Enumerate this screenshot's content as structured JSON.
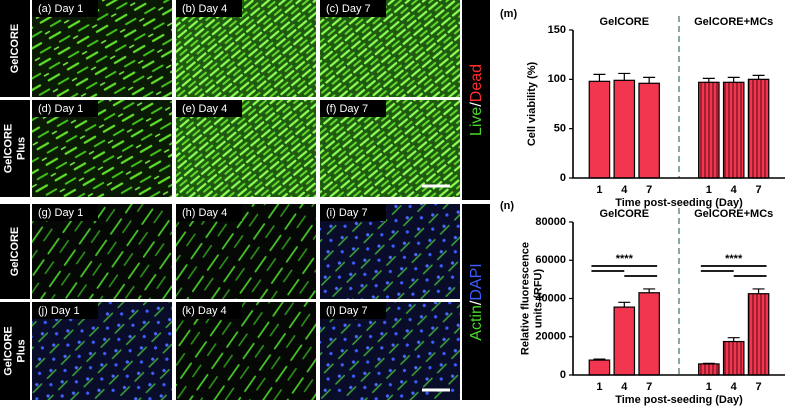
{
  "panels": {
    "row_labels": [
      [
        "GelCORE"
      ],
      [
        "GelCORE",
        "Plus"
      ],
      [
        "GelCORE"
      ],
      [
        "GelCORE",
        "Plus"
      ]
    ],
    "image_labels": [
      "(a) Day 1",
      "(b) Day 4",
      "(c) Day 7",
      "(d) Day 1",
      "(e) Day 4",
      "(f) Day 7",
      "(g) Day 1",
      "(h) Day 4",
      "(i) Day 7",
      "(j) Day 1",
      "(k) Day 4",
      "(l) Day 7"
    ],
    "stain_labels": [
      [
        "Live",
        "/",
        "Dead"
      ],
      [
        "Actin",
        "/",
        "DAPI"
      ]
    ]
  },
  "chart_data": [
    {
      "type": "bar",
      "title": "(m)",
      "y_label": [
        "Cell viability (%)"
      ],
      "x_label": "Time post-seeding (Day)",
      "categories": [
        "1",
        "4",
        "7",
        "1",
        "4",
        "7"
      ],
      "group_labels": [
        "GelCORE",
        "GelCORE+MCs"
      ],
      "values": [
        98,
        99,
        96,
        97,
        97,
        100
      ],
      "errors": [
        7,
        7,
        6,
        4,
        5,
        4
      ],
      "hatched": [
        false,
        false,
        false,
        true,
        true,
        true
      ],
      "color": "#f2364f",
      "ylim": [
        0,
        150
      ],
      "yticks": [
        0,
        50,
        100,
        150
      ]
    },
    {
      "type": "bar",
      "title": "(n)",
      "y_label": [
        "Relative fluorescence",
        "units (RFU)"
      ],
      "x_label": "Time post-seeding (Day)",
      "categories": [
        "1",
        "4",
        "7",
        "1",
        "4",
        "7"
      ],
      "group_labels": [
        "GelCORE",
        "GelCORE+MCs"
      ],
      "values": [
        7800,
        35500,
        43000,
        5800,
        17500,
        42500
      ],
      "errors": [
        500,
        2500,
        2000,
        300,
        2000,
        2500
      ],
      "hatched": [
        false,
        false,
        false,
        true,
        true,
        true
      ],
      "color": "#f2364f",
      "annotations": [
        "****",
        "****"
      ],
      "ylim": [
        0,
        80000
      ],
      "yticks": [
        0,
        20000,
        40000,
        60000,
        80000
      ]
    }
  ]
}
